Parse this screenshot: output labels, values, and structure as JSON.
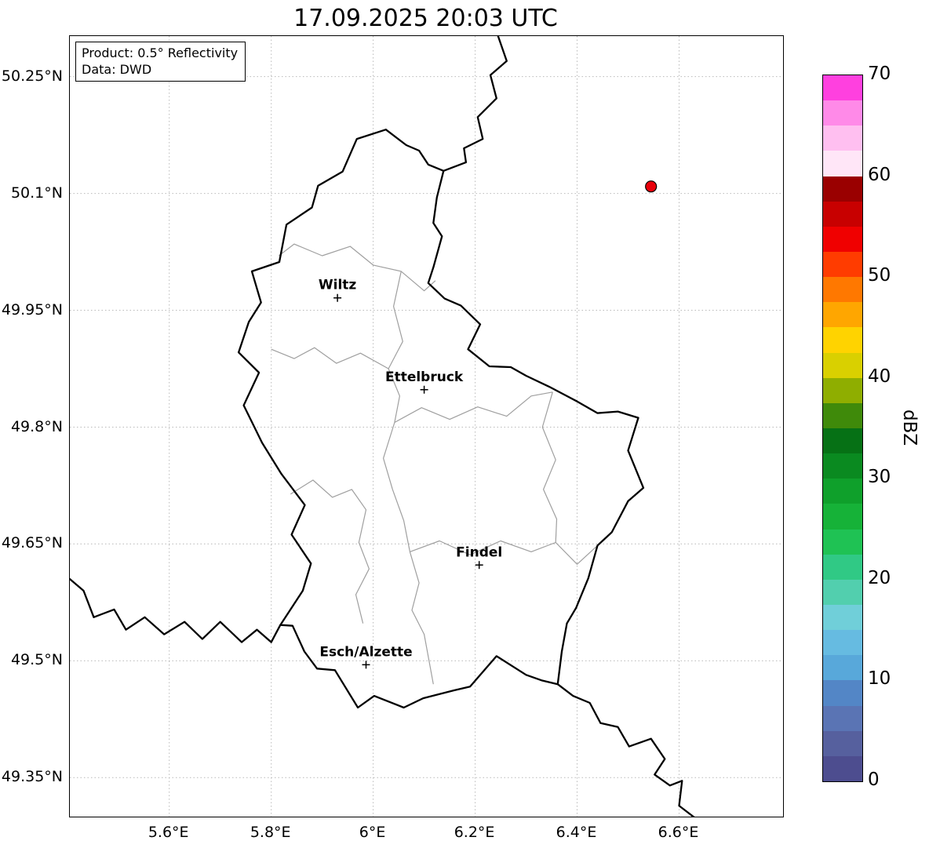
{
  "title": "17.09.2025 20:03 UTC",
  "info_box": {
    "line1": "Product: 0.5° Reflectivity",
    "line2": "Data: DWD"
  },
  "map": {
    "extent": {
      "lon_min": 5.405,
      "lon_max": 6.804,
      "lat_min": 49.3,
      "lat_max": 50.302
    },
    "lat_ticks": [
      {
        "label": "50.25°N",
        "value": 50.25
      },
      {
        "label": "50.1°N",
        "value": 50.1
      },
      {
        "label": "49.95°N",
        "value": 49.95
      },
      {
        "label": "49.8°N",
        "value": 49.8
      },
      {
        "label": "49.65°N",
        "value": 49.65
      },
      {
        "label": "49.5°N",
        "value": 49.5
      },
      {
        "label": "49.35°N",
        "value": 49.35
      }
    ],
    "lon_ticks": [
      {
        "label": "5.6°E",
        "value": 5.6
      },
      {
        "label": "5.8°E",
        "value": 5.8
      },
      {
        "label": "6°E",
        "value": 6.0
      },
      {
        "label": "6.2°E",
        "value": 6.2
      },
      {
        "label": "6.4°E",
        "value": 6.4
      },
      {
        "label": "6.6°E",
        "value": 6.6
      }
    ],
    "cities": [
      {
        "name": "Wiltz",
        "lon": 5.93,
        "lat": 49.966
      },
      {
        "name": "Ettelbruck",
        "lon": 6.1,
        "lat": 49.848
      },
      {
        "name": "Findel",
        "lon": 6.208,
        "lat": 49.623
      },
      {
        "name": "Esch/Alzette",
        "lon": 5.986,
        "lat": 49.495
      }
    ],
    "radar_marker": {
      "lon": 6.545,
      "lat": 50.109,
      "color": "#e8000b"
    },
    "line_colors": {
      "national": "#000000",
      "regional": "#9f9f9f",
      "grid": "#b9b9b9"
    },
    "borders": {
      "national": [
        [
          [
            6.025,
            50.182
          ],
          [
            6.065,
            50.162
          ],
          [
            6.09,
            50.155
          ],
          [
            6.108,
            50.137
          ],
          [
            6.138,
            50.129
          ],
          [
            6.125,
            50.095
          ],
          [
            6.118,
            50.062
          ],
          [
            6.135,
            50.045
          ],
          [
            6.118,
            50.005
          ],
          [
            6.108,
            49.985
          ],
          [
            6.14,
            49.965
          ],
          [
            6.172,
            49.956
          ],
          [
            6.21,
            49.932
          ],
          [
            6.186,
            49.9
          ],
          [
            6.228,
            49.878
          ],
          [
            6.27,
            49.877
          ],
          [
            6.3,
            49.866
          ],
          [
            6.345,
            49.852
          ],
          [
            6.4,
            49.833
          ],
          [
            6.44,
            49.818
          ],
          [
            6.48,
            49.82
          ],
          [
            6.52,
            49.812
          ],
          [
            6.5,
            49.77
          ],
          [
            6.53,
            49.722
          ],
          [
            6.5,
            49.705
          ],
          [
            6.468,
            49.665
          ],
          [
            6.44,
            49.648
          ],
          [
            6.422,
            49.606
          ],
          [
            6.398,
            49.568
          ],
          [
            6.38,
            49.548
          ],
          [
            6.37,
            49.512
          ],
          [
            6.362,
            49.47
          ],
          [
            6.33,
            49.475
          ],
          [
            6.3,
            49.482
          ],
          [
            6.242,
            49.506
          ],
          [
            6.19,
            49.467
          ],
          [
            6.158,
            49.462
          ],
          [
            6.098,
            49.452
          ],
          [
            6.06,
            49.44
          ],
          [
            6.002,
            49.455
          ],
          [
            5.97,
            49.44
          ],
          [
            5.925,
            49.488
          ],
          [
            5.89,
            49.49
          ],
          [
            5.865,
            49.512
          ],
          [
            5.842,
            49.545
          ],
          [
            5.818,
            49.546
          ],
          [
            5.862,
            49.59
          ],
          [
            5.878,
            49.625
          ],
          [
            5.84,
            49.662
          ],
          [
            5.866,
            49.7
          ],
          [
            5.82,
            49.74
          ],
          [
            5.782,
            49.78
          ],
          [
            5.746,
            49.828
          ],
          [
            5.776,
            49.87
          ],
          [
            5.736,
            49.896
          ],
          [
            5.756,
            49.935
          ],
          [
            5.78,
            49.96
          ],
          [
            5.762,
            50.0
          ],
          [
            5.816,
            50.012
          ],
          [
            5.83,
            50.06
          ],
          [
            5.88,
            50.082
          ],
          [
            5.892,
            50.11
          ],
          [
            5.94,
            50.128
          ],
          [
            5.968,
            50.17
          ],
          [
            6.025,
            50.182
          ]
        ],
        [
          [
            6.245,
            50.302
          ],
          [
            6.262,
            50.27
          ],
          [
            6.23,
            50.252
          ],
          [
            6.242,
            50.222
          ],
          [
            6.205,
            50.198
          ],
          [
            6.215,
            50.17
          ],
          [
            6.178,
            50.158
          ],
          [
            6.182,
            50.14
          ],
          [
            6.138,
            50.129
          ]
        ],
        [
          [
            5.405,
            49.605
          ],
          [
            5.432,
            49.59
          ],
          [
            5.452,
            49.556
          ],
          [
            5.492,
            49.566
          ],
          [
            5.515,
            49.54
          ],
          [
            5.552,
            49.556
          ],
          [
            5.59,
            49.534
          ],
          [
            5.63,
            49.55
          ],
          [
            5.665,
            49.528
          ],
          [
            5.7,
            49.55
          ],
          [
            5.742,
            49.524
          ],
          [
            5.772,
            49.54
          ],
          [
            5.8,
            49.524
          ],
          [
            5.818,
            49.546
          ]
        ],
        [
          [
            6.362,
            49.47
          ],
          [
            6.392,
            49.455
          ],
          [
            6.425,
            49.446
          ],
          [
            6.446,
            49.42
          ],
          [
            6.48,
            49.415
          ],
          [
            6.502,
            49.39
          ],
          [
            6.545,
            49.4
          ],
          [
            6.572,
            49.374
          ],
          [
            6.552,
            49.354
          ],
          [
            6.582,
            49.34
          ],
          [
            6.606,
            49.346
          ],
          [
            6.6,
            49.314
          ],
          [
            6.632,
            49.298
          ]
        ]
      ],
      "regional": [
        [
          [
            5.815,
            50.02
          ],
          [
            5.845,
            50.035
          ],
          [
            5.9,
            50.02
          ],
          [
            5.955,
            50.032
          ],
          [
            6.0,
            50.008
          ],
          [
            6.055,
            50.0
          ],
          [
            6.1,
            49.975
          ],
          [
            6.122,
            49.988
          ]
        ],
        [
          [
            6.055,
            50.0
          ],
          [
            6.04,
            49.955
          ],
          [
            6.058,
            49.91
          ],
          [
            6.03,
            49.875
          ],
          [
            6.052,
            49.84
          ],
          [
            6.042,
            49.806
          ]
        ],
        [
          [
            5.8,
            49.9
          ],
          [
            5.845,
            49.888
          ],
          [
            5.885,
            49.902
          ],
          [
            5.928,
            49.882
          ],
          [
            5.975,
            49.895
          ],
          [
            6.03,
            49.875
          ]
        ],
        [
          [
            6.042,
            49.806
          ],
          [
            6.095,
            49.825
          ],
          [
            6.15,
            49.81
          ],
          [
            6.205,
            49.826
          ],
          [
            6.262,
            49.814
          ],
          [
            6.31,
            49.84
          ],
          [
            6.352,
            49.845
          ]
        ],
        [
          [
            6.042,
            49.806
          ],
          [
            6.02,
            49.76
          ],
          [
            6.038,
            49.72
          ],
          [
            6.06,
            49.68
          ],
          [
            6.072,
            49.64
          ],
          [
            6.09,
            49.6
          ],
          [
            6.076,
            49.565
          ],
          [
            6.1,
            49.534
          ],
          [
            6.118,
            49.47
          ]
        ],
        [
          [
            5.838,
            49.714
          ],
          [
            5.882,
            49.732
          ],
          [
            5.92,
            49.71
          ],
          [
            5.958,
            49.72
          ],
          [
            5.986,
            49.694
          ],
          [
            5.972,
            49.652
          ],
          [
            5.992,
            49.618
          ],
          [
            5.966,
            49.585
          ],
          [
            5.98,
            49.548
          ]
        ],
        [
          [
            6.072,
            49.64
          ],
          [
            6.13,
            49.654
          ],
          [
            6.19,
            49.636
          ],
          [
            6.25,
            49.654
          ],
          [
            6.31,
            49.64
          ],
          [
            6.358,
            49.652
          ],
          [
            6.4,
            49.624
          ],
          [
            6.44,
            49.648
          ]
        ],
        [
          [
            6.352,
            49.845
          ],
          [
            6.332,
            49.8
          ],
          [
            6.358,
            49.758
          ],
          [
            6.334,
            49.72
          ],
          [
            6.36,
            49.682
          ],
          [
            6.358,
            49.652
          ]
        ]
      ]
    }
  },
  "colorbar": {
    "label": "dBZ",
    "vmin": 0,
    "vmax": 70,
    "tick_values": [
      0,
      10,
      20,
      30,
      40,
      50,
      60,
      70
    ],
    "colors_bottom_to_top": [
      "#4d4d8f",
      "#56609e",
      "#5a74b4",
      "#5386c6",
      "#58a8da",
      "#66bbe1",
      "#70cfd9",
      "#52cfae",
      "#30c985",
      "#1fc254",
      "#16b238",
      "#0fa02b",
      "#0a8a20",
      "#067115",
      "#3f8a0a",
      "#8fae00",
      "#d9d000",
      "#ffd300",
      "#ffa600",
      "#ff7800",
      "#ff3c00",
      "#f00000",
      "#c80000",
      "#9a0000",
      "#ffe6f7",
      "#ffbff0",
      "#ff8ae8",
      "#ff40df"
    ]
  }
}
